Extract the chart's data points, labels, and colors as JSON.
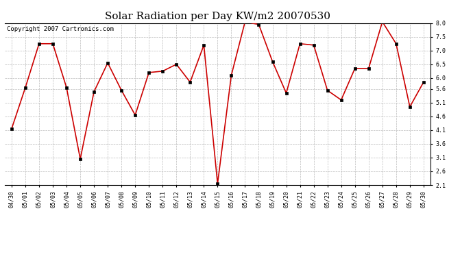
{
  "title": "Solar Radiation per Day KW/m2 20070530",
  "copyright": "Copyright 2007 Cartronics.com",
  "dates": [
    "04/30",
    "05/01",
    "05/02",
    "05/03",
    "05/04",
    "05/05",
    "05/06",
    "05/07",
    "05/08",
    "05/09",
    "05/10",
    "05/11",
    "05/12",
    "05/13",
    "05/14",
    "05/15",
    "05/16",
    "05/17",
    "05/18",
    "05/19",
    "05/20",
    "05/21",
    "05/22",
    "05/23",
    "05/24",
    "05/25",
    "05/26",
    "05/27",
    "05/28",
    "05/29",
    "05/30"
  ],
  "values": [
    4.15,
    5.65,
    7.25,
    7.25,
    5.65,
    3.05,
    5.5,
    6.55,
    5.55,
    4.65,
    6.2,
    6.25,
    6.5,
    5.85,
    7.2,
    2.15,
    6.1,
    8.05,
    7.95,
    6.6,
    5.45,
    7.25,
    7.2,
    5.55,
    5.2,
    6.35,
    6.35,
    8.05,
    7.25,
    4.95,
    5.85
  ],
  "line_color": "#cc0000",
  "marker": "s",
  "marker_size": 2.5,
  "marker_color": "#000000",
  "bg_color": "#ffffff",
  "grid_color": "#bbbbbb",
  "ylim": [
    2.1,
    8.0
  ],
  "yticks": [
    2.1,
    2.6,
    3.1,
    3.6,
    4.1,
    4.6,
    5.1,
    5.6,
    6.0,
    6.5,
    7.0,
    7.5,
    8.0
  ],
  "title_fontsize": 11,
  "copyright_fontsize": 6.5,
  "tick_fontsize": 6.0
}
